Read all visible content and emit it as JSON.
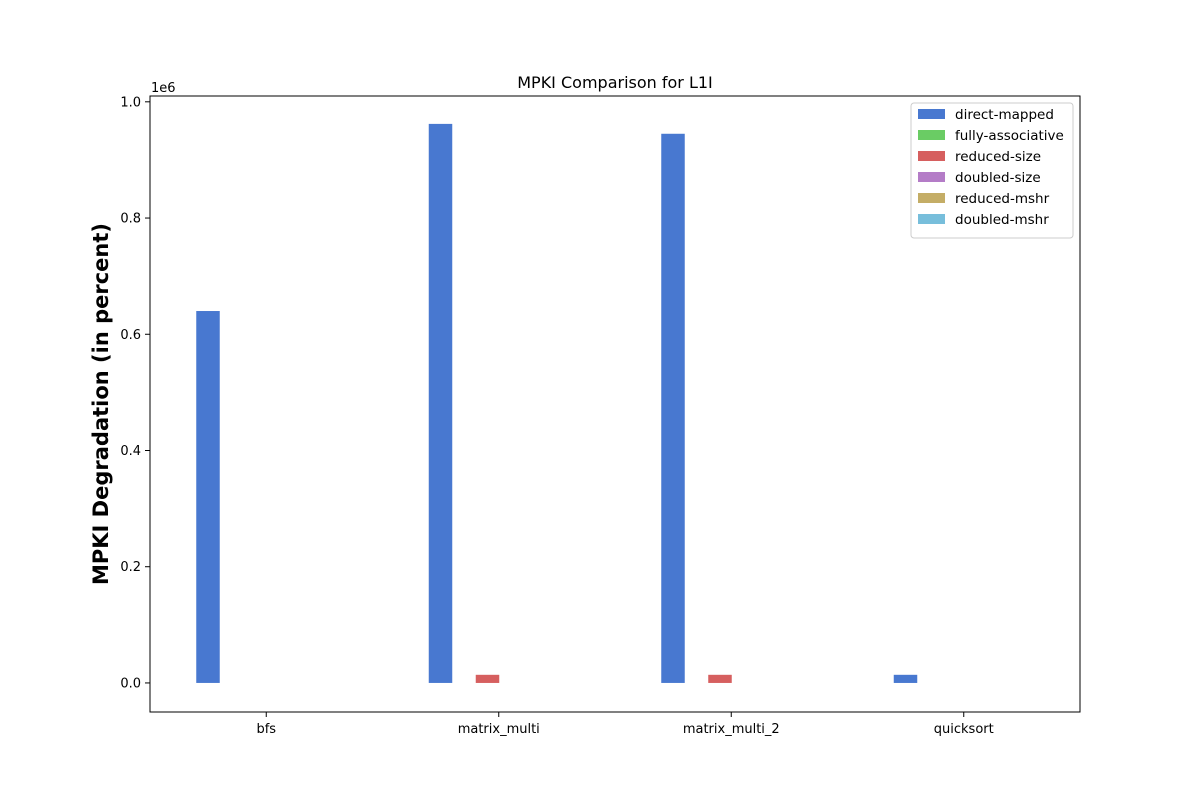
{
  "chart_data": {
    "type": "bar",
    "title": "MPKI Comparison for L1I",
    "xlabel": "",
    "ylabel": "MPKI Degradation (in percent)",
    "y_offset_text": "1e6",
    "y_scale_factor": 1000000,
    "ylim": [
      -50000,
      1010000
    ],
    "yticks": [
      0.0,
      0.2,
      0.4,
      0.6,
      0.8,
      1.0
    ],
    "ytick_labels": [
      "0.0",
      "0.2",
      "0.4",
      "0.6",
      "0.8",
      "1.0"
    ],
    "categories": [
      "bfs",
      "matrix_multi",
      "matrix_multi_2",
      "quicksort"
    ],
    "series": [
      {
        "name": "direct-mapped",
        "color": "#4878d0",
        "values": [
          640000,
          962000,
          945000,
          14000
        ]
      },
      {
        "name": "fully-associative",
        "color": "#6acc64",
        "values": [
          0,
          0,
          0,
          0
        ]
      },
      {
        "name": "reduced-size",
        "color": "#d65f5f",
        "values": [
          0,
          14000,
          14000,
          0
        ]
      },
      {
        "name": "doubled-size",
        "color": "#b47cc7",
        "values": [
          0,
          0,
          0,
          0
        ]
      },
      {
        "name": "reduced-mshr",
        "color": "#c4ad66",
        "values": [
          0,
          0,
          0,
          0
        ]
      },
      {
        "name": "doubled-mshr",
        "color": "#77bedb",
        "values": [
          0,
          0,
          0,
          0
        ]
      }
    ],
    "legend_position": "top-right",
    "grid": false
  }
}
